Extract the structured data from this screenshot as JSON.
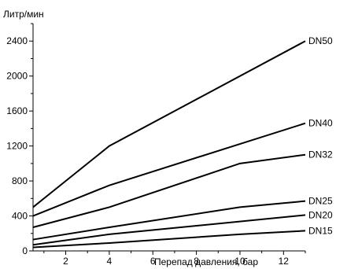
{
  "chart_data": {
    "type": "line",
    "title": "",
    "ylabel": "Литр/мин",
    "xlabel": "Перепад давления, бар",
    "xlim": [
      0.5,
      13
    ],
    "ylim": [
      0,
      2600
    ],
    "xticks": [
      2,
      4,
      6,
      8,
      10,
      12
    ],
    "yticks": [
      0,
      400,
      800,
      1200,
      1600,
      2000,
      2400
    ],
    "grid": false,
    "legend": "inline labels at right end of each line",
    "series": [
      {
        "name": "DN50",
        "x": [
          0.5,
          4,
          13
        ],
        "y": [
          500,
          1200,
          2400
        ]
      },
      {
        "name": "DN40",
        "x": [
          0.5,
          4,
          13
        ],
        "y": [
          400,
          750,
          1460
        ]
      },
      {
        "name": "DN32",
        "x": [
          0.5,
          4,
          10,
          13
        ],
        "y": [
          270,
          500,
          1000,
          1100
        ]
      },
      {
        "name": "DN25",
        "x": [
          0.5,
          4,
          10,
          13
        ],
        "y": [
          130,
          270,
          500,
          570
        ]
      },
      {
        "name": "DN20",
        "x": [
          0.5,
          4,
          13
        ],
        "y": [
          70,
          190,
          410
        ]
      },
      {
        "name": "DN15",
        "x": [
          0.5,
          4,
          10,
          13
        ],
        "y": [
          40,
          90,
          190,
          230
        ]
      }
    ]
  }
}
